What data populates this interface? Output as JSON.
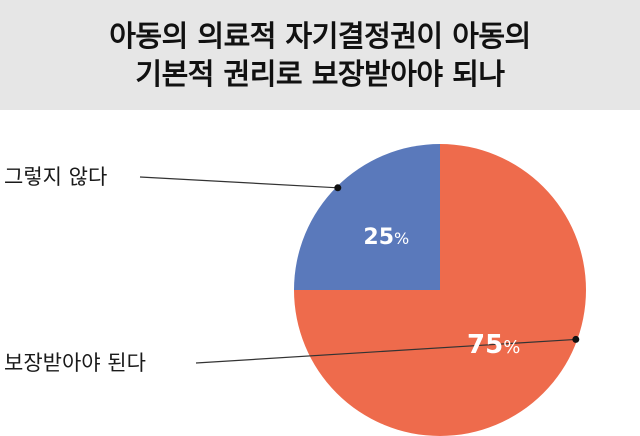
{
  "chart_data": {
    "type": "pie",
    "title": [
      "아동의 의료적 자기결정권이 아동의",
      "기본적 권리로 보장받아야 되나"
    ],
    "slices": [
      {
        "label": "그렇지 않다",
        "value": 25,
        "display": "25",
        "unit": "%",
        "color": "#5a79bb"
      },
      {
        "label": "보장받아야 된다",
        "value": 75,
        "display": "75",
        "unit": "%",
        "color": "#ee6b4c"
      }
    ],
    "start_angle_deg": 0,
    "direction": "counterclockwise-from-top"
  }
}
